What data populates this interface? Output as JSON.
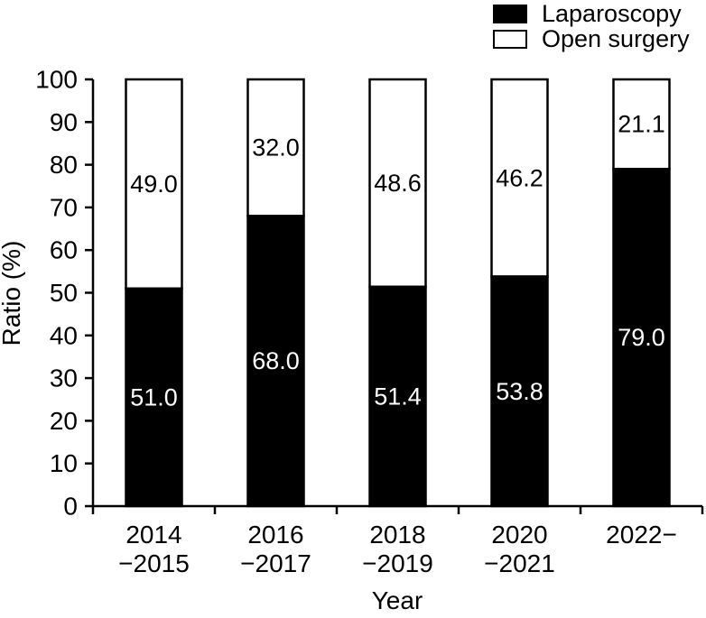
{
  "chart_data": {
    "type": "bar",
    "stacked": true,
    "title": "",
    "xlabel": "Year",
    "ylabel": "Ratio (%)",
    "ylim": [
      0,
      100
    ],
    "ytick_step": 10,
    "ytick_labels": [
      "0",
      "10",
      "20",
      "30",
      "40",
      "50",
      "60",
      "70",
      "80",
      "90",
      "100"
    ],
    "categories": [
      [
        "2014",
        "−2015"
      ],
      [
        "2016",
        "−2017"
      ],
      [
        "2018",
        "−2019"
      ],
      [
        "2020",
        "−2021"
      ],
      [
        "2022−"
      ]
    ],
    "series": [
      {
        "name": "Laparoscopy",
        "color": "#000000",
        "label_color": "#ffffff",
        "values": [
          51.0,
          68.0,
          51.4,
          53.8,
          79.0
        ]
      },
      {
        "name": "Open surgery",
        "color": "#ffffff",
        "label_color": "#000000",
        "values": [
          49.0,
          32.0,
          48.6,
          46.2,
          21.1
        ]
      }
    ],
    "grid": false,
    "legend_position": "top-right"
  },
  "legend": {
    "items": [
      {
        "label": "Laparoscopy",
        "swatch": "black"
      },
      {
        "label": "Open surgery",
        "swatch": "white"
      }
    ]
  },
  "colors": {
    "foreground": "#000000",
    "background": "#ffffff"
  }
}
